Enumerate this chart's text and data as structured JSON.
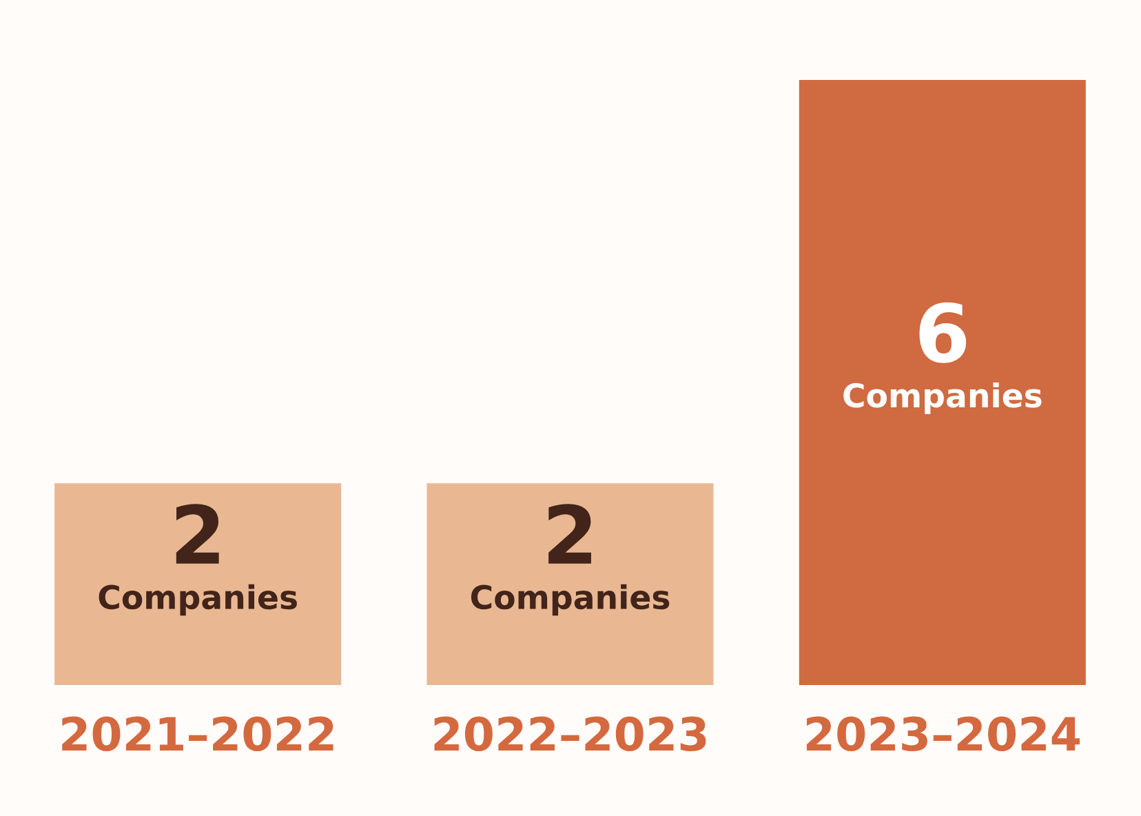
{
  "chart_data": {
    "type": "bar",
    "categories": [
      "2021–2022",
      "2022–2023",
      "2023–2024"
    ],
    "values": [
      2,
      2,
      6
    ],
    "colors": [
      "#e9b892",
      "#e9b892",
      "#d06a40"
    ],
    "value_labels": [
      "2\nCompanies",
      "2\nCompanies",
      "6\nCompanies"
    ],
    "ylim": [
      0,
      6
    ],
    "tick_labels": "x",
    "grid": false
  }
}
